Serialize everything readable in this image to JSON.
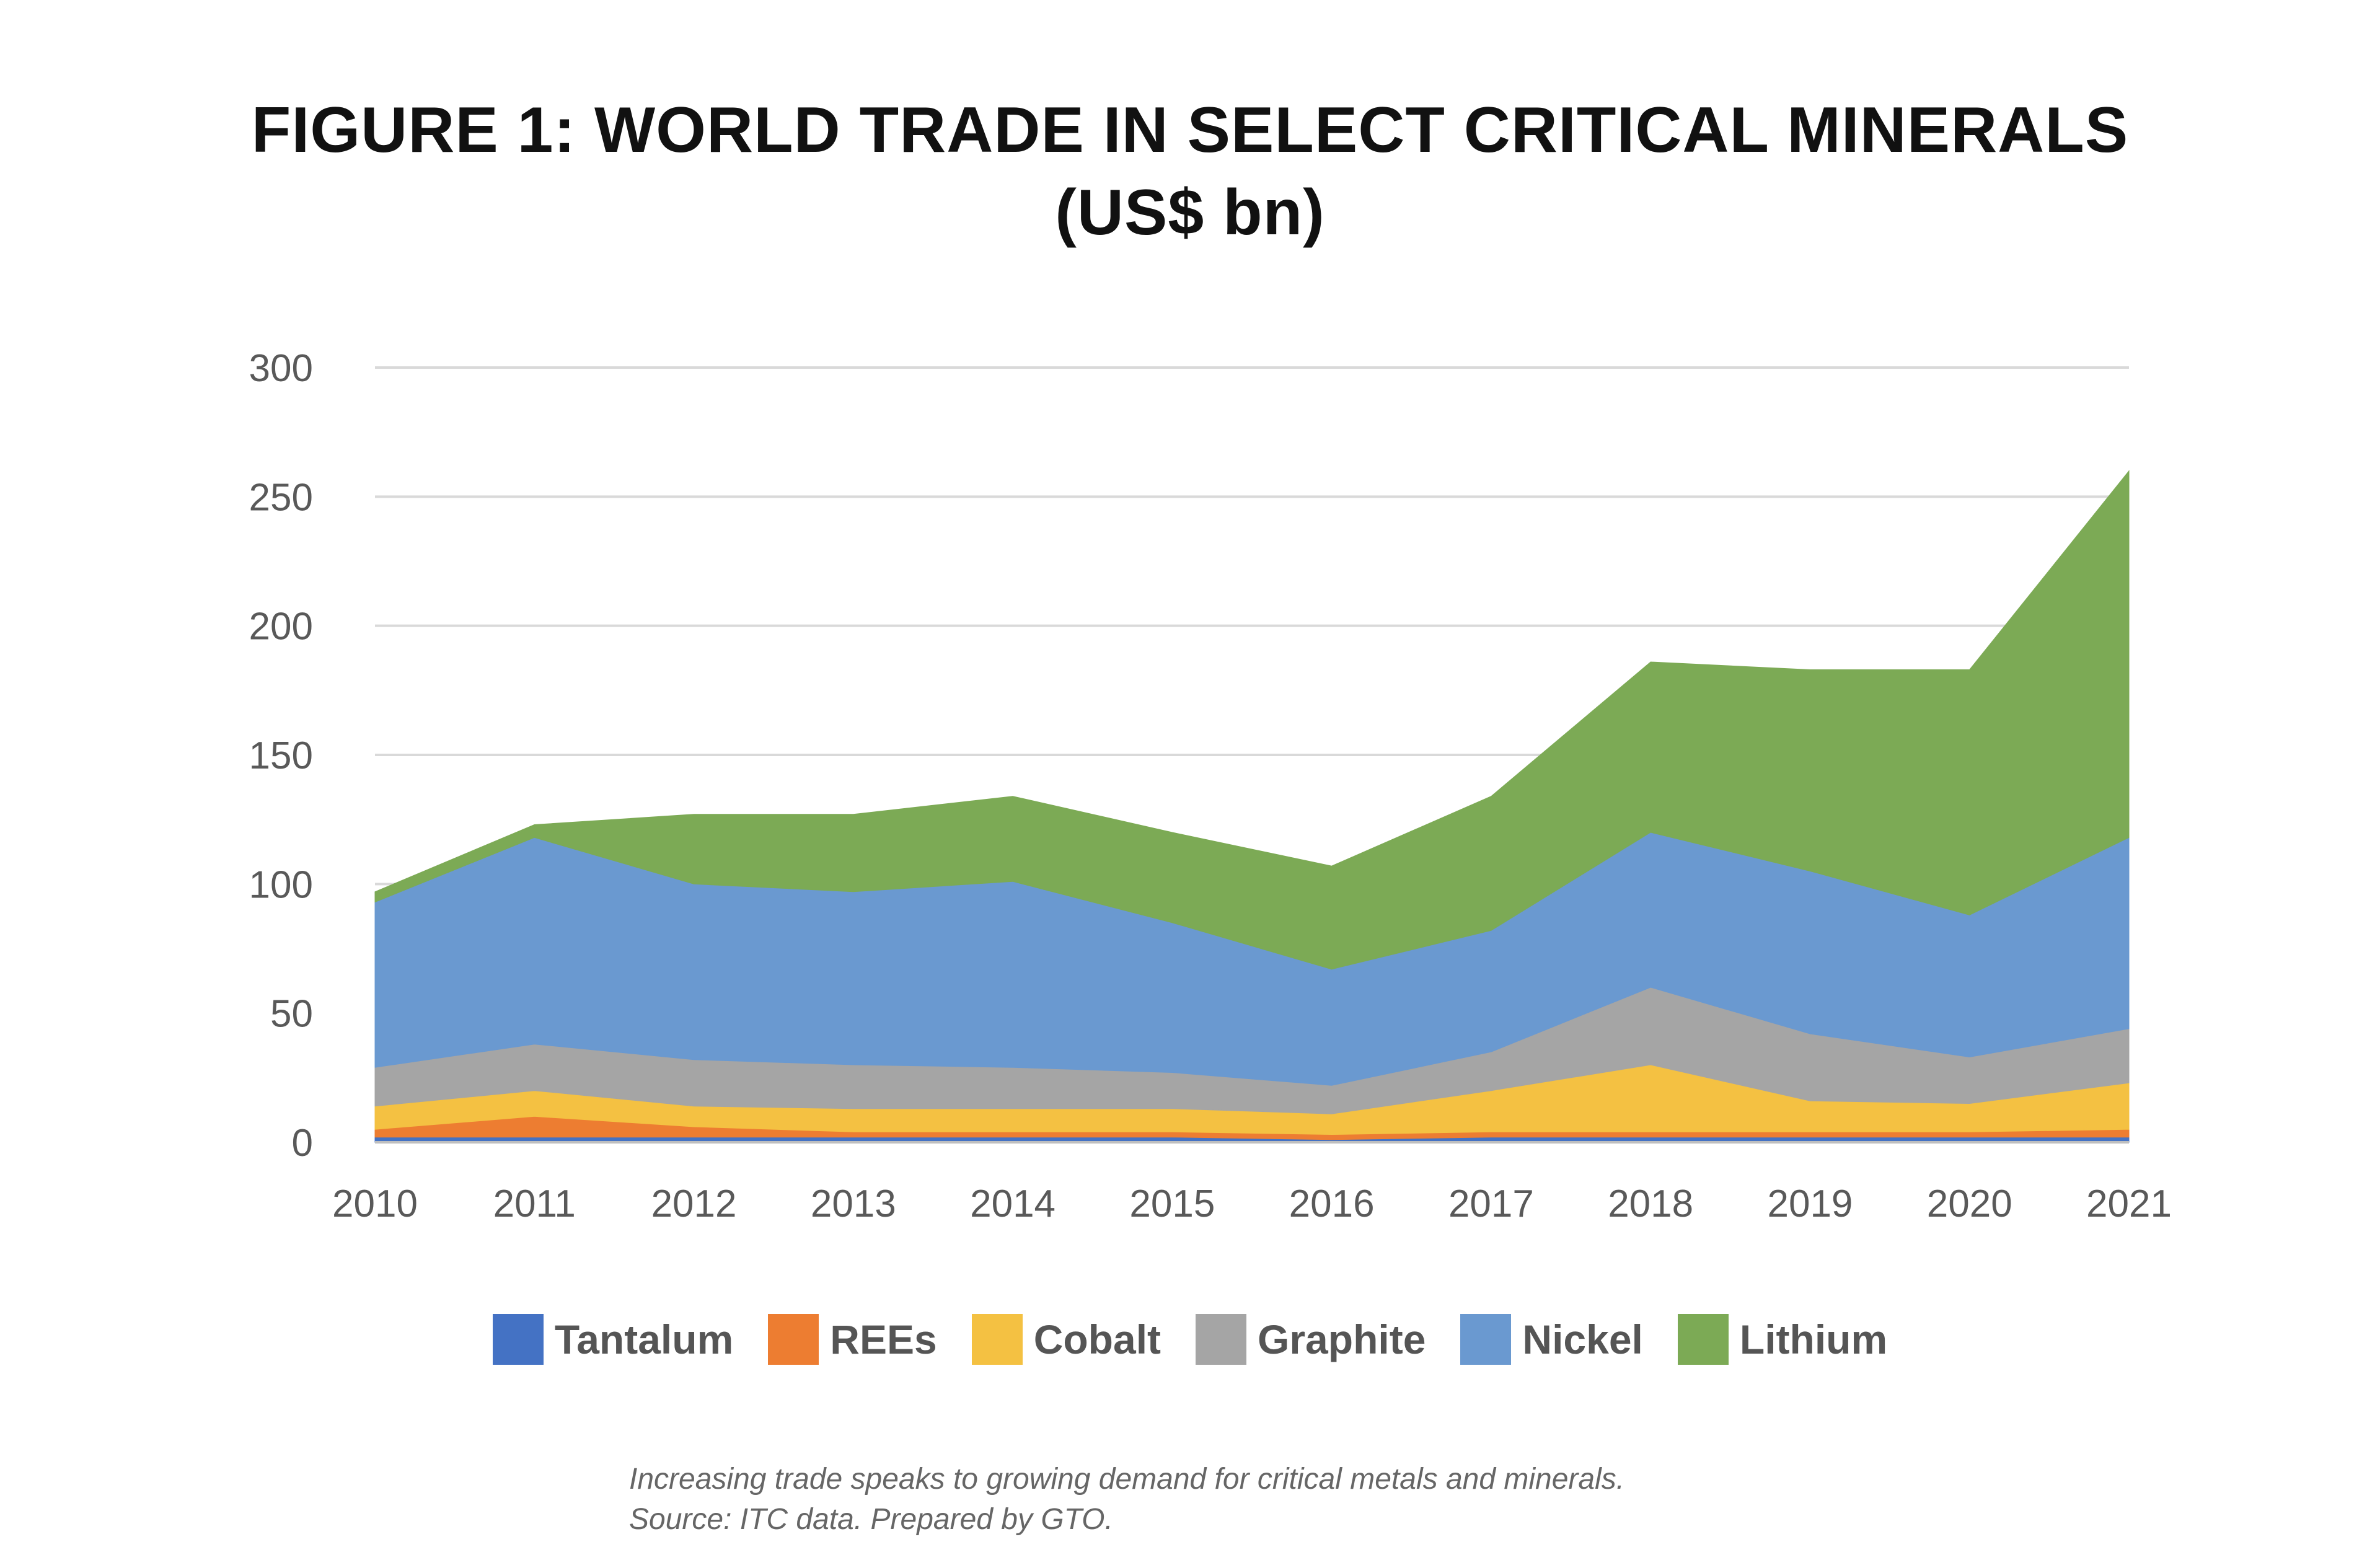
{
  "title_line1": "FIGURE 1: WORLD TRADE IN SELECT CRITICAL MINERALS",
  "title_line2": "(US$ bn)",
  "caption_line1": "Increasing trade speaks to growing demand for critical metals and minerals.",
  "caption_line2": "Source: ITC data. Prepared by GTO.",
  "chart_data": {
    "type": "area",
    "stacked": true,
    "x": [
      "2010",
      "2011",
      "2012",
      "2013",
      "2014",
      "2015",
      "2016",
      "2017",
      "2018",
      "2019",
      "2020",
      "2021"
    ],
    "ylim": [
      0,
      300
    ],
    "yticks": [
      0,
      50,
      100,
      150,
      200,
      250,
      300
    ],
    "grid": true,
    "legend_position": "bottom",
    "series": [
      {
        "name": "Tantalum",
        "color": "#4472C4",
        "values": [
          2,
          2,
          2,
          2,
          2,
          2,
          1,
          2,
          2,
          2,
          2,
          2
        ]
      },
      {
        "name": "REEs",
        "color": "#ED7D31",
        "values": [
          3,
          8,
          4,
          2,
          2,
          2,
          2,
          2,
          2,
          2,
          2,
          3
        ]
      },
      {
        "name": "Cobalt",
        "color": "#F4C142",
        "values": [
          9,
          10,
          8,
          9,
          9,
          9,
          8,
          16,
          26,
          12,
          11,
          18
        ]
      },
      {
        "name": "Graphite",
        "color": "#A5A5A5",
        "values": [
          15,
          18,
          18,
          17,
          16,
          14,
          11,
          15,
          30,
          26,
          18,
          21
        ]
      },
      {
        "name": "Nickel",
        "color": "#6A99D0",
        "values": [
          64,
          80,
          68,
          67,
          72,
          58,
          45,
          47,
          60,
          63,
          55,
          74
        ]
      },
      {
        "name": "Lithium",
        "color": "#7CAA55",
        "values": [
          4,
          5,
          27,
          30,
          33,
          35,
          40,
          52,
          66,
          78,
          95,
          142
        ]
      }
    ]
  }
}
